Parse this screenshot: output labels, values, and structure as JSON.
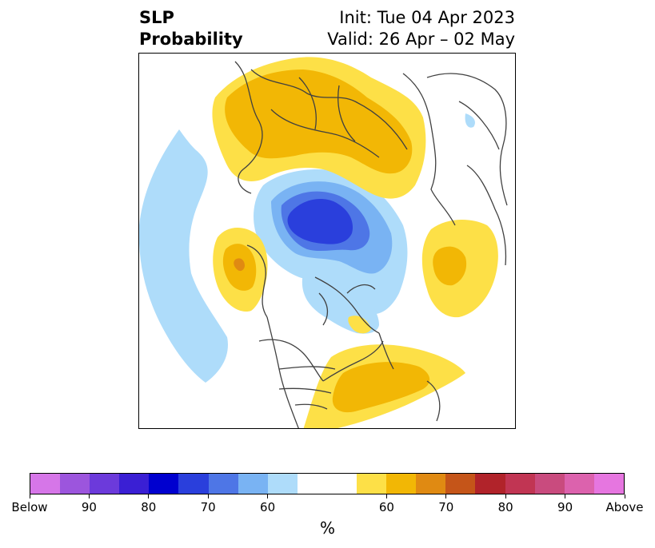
{
  "header": {
    "title_line1": "SLP",
    "title_line2": "Probability",
    "init": "Init: Tue 04 Apr 2023",
    "valid": "Valid: 26 Apr – 02 May"
  },
  "colorbar": {
    "unit": "%",
    "colors": [
      "#d676e8",
      "#9c55dd",
      "#6c3adb",
      "#3a1fd4",
      "#0000cf",
      "#2a3fdc",
      "#4e76e6",
      "#79b3f3",
      "#aedcfa",
      "#ffffff",
      "#ffffff",
      "#fde047",
      "#f2b705",
      "#e08a12",
      "#c55519",
      "#b1232a",
      "#c13553",
      "#c94b7e",
      "#dc62ad",
      "#e676e0"
    ],
    "tick_labels": [
      "Below",
      "90",
      "80",
      "70",
      "60",
      "60",
      "70",
      "80",
      "90",
      "Above"
    ]
  }
}
